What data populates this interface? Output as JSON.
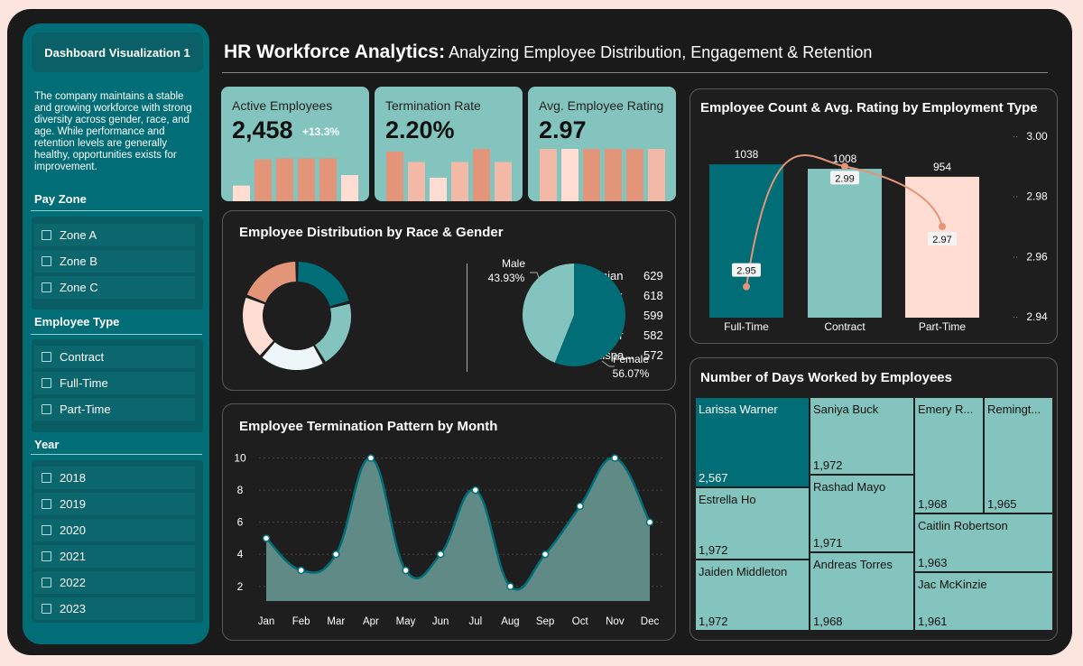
{
  "colors": {
    "teal_dark": "#006d77",
    "teal_light": "#83c5be",
    "peach": "#ffddd2",
    "salmon": "#e29578",
    "bg": "#1a1a1a"
  },
  "sidebar": {
    "title": "Dashboard Visualization 1",
    "description": "The company maintains a stable and growing workforce with strong diversity across gender, race, and age. While performance and retention levels are generally healthy, opportunities exists for improvement.",
    "pay_zone": {
      "heading": "Pay Zone",
      "items": [
        "Zone A",
        "Zone B",
        "Zone C"
      ]
    },
    "employee_type": {
      "heading": "Employee Type",
      "items": [
        "Contract",
        "Full-Time",
        "Part-Time"
      ]
    },
    "year": {
      "heading": "Year",
      "items": [
        "2018",
        "2019",
        "2020",
        "2021",
        "2022",
        "2023"
      ]
    }
  },
  "header": {
    "title_bold": "HR Workforce Analytics:",
    "title_rest": " Analyzing Employee Distribution, Engagement & Retention"
  },
  "kpis": [
    {
      "label": "Active Employees",
      "value": "2,458",
      "delta": "+13.3%",
      "bars": [
        0.3,
        0.8,
        0.82,
        0.82,
        0.82,
        0.5
      ],
      "bar_colors": [
        "#ffddd2",
        "#e29578",
        "#e29578",
        "#e29578",
        "#e29578",
        "#ffddd2"
      ]
    },
    {
      "label": "Termination Rate",
      "value": "2.20%",
      "delta": "",
      "bars": [
        0.95,
        0.75,
        0.45,
        0.75,
        1.0,
        0.75
      ],
      "bar_colors": [
        "#e29578",
        "#f1b9a6",
        "#ffddd2",
        "#f1b9a6",
        "#e29578",
        "#f1b9a6"
      ]
    },
    {
      "label": "Avg. Employee Rating",
      "value": "2.97",
      "delta": "",
      "bars": [
        1.0,
        1.0,
        1.0,
        1.0,
        1.0,
        1.0
      ],
      "bar_colors": [
        "#f1b9a6",
        "#ffddd2",
        "#e29578",
        "#e29578",
        "#e29578",
        "#f1b9a6"
      ]
    }
  ],
  "race_gender": {
    "title": "Employee Distribution by Race & Gender",
    "race": [
      {
        "label": "Asian",
        "value": 629,
        "color": "#006d77"
      },
      {
        "label": "Black",
        "value": 618,
        "color": "#83c5be"
      },
      {
        "label": "White",
        "value": 599,
        "color": "#edf6f9"
      },
      {
        "label": "Other",
        "value": 582,
        "color": "#ffddd2"
      },
      {
        "label": "Hispa...",
        "value": 572,
        "color": "#e29578"
      }
    ],
    "gender": [
      {
        "label": "Female",
        "pct": "56.07%",
        "value": 56.07,
        "color": "#006d77"
      },
      {
        "label": "Male",
        "pct": "43.93%",
        "value": 43.93,
        "color": "#83c5be"
      }
    ]
  },
  "termination": {
    "title": "Employee Termination Pattern by Month",
    "chart_data": {
      "type": "area",
      "categories": [
        "Jan",
        "Feb",
        "Mar",
        "Apr",
        "May",
        "Jun",
        "Jul",
        "Aug",
        "Sep",
        "Oct",
        "Nov",
        "Dec"
      ],
      "values": [
        5,
        3,
        4,
        10,
        3,
        4,
        8,
        2,
        4,
        7,
        10,
        6
      ],
      "yticks": [
        2,
        4,
        6,
        8,
        10
      ],
      "ylim": [
        1.2,
        10.2
      ],
      "grid": true
    }
  },
  "employment_type": {
    "title": "Employee Count & Avg. Rating by Employment Type",
    "chart_data": {
      "type": "bar",
      "categories": [
        "Full-Time",
        "Contract",
        "Part-Time"
      ],
      "series": [
        {
          "values": [
            1038,
            1008,
            954
          ],
          "colors": [
            "#006d77",
            "#83c5be",
            "#ffddd2"
          ]
        },
        {
          "values": [
            2.95,
            2.99,
            2.97
          ],
          "color": "#e29578"
        }
      ],
      "yticks_right": [
        "3.00",
        "2.98",
        "2.96",
        "2.94"
      ],
      "ylim_right": [
        2.94,
        3.0
      ]
    }
  },
  "days_worked": {
    "title": "Number of Days Worked by Employees",
    "cells": [
      {
        "name": "Larissa Warner",
        "value": "2,567"
      },
      {
        "name": "Saniya Buck",
        "value": "1,972"
      },
      {
        "name": "Emery R...",
        "value": "1,968"
      },
      {
        "name": "Remingt...",
        "value": "1,965"
      },
      {
        "name": "Estrella Ho",
        "value": "1,972"
      },
      {
        "name": "Rashad Mayo",
        "value": "1,971"
      },
      {
        "name": "Caitlin Robertson",
        "value": "1,963"
      },
      {
        "name": "Jaiden Middleton",
        "value": "1,972"
      },
      {
        "name": "Andreas Torres",
        "value": "1,968"
      },
      {
        "name": "Jac McKinzie",
        "value": "1,961"
      }
    ]
  }
}
